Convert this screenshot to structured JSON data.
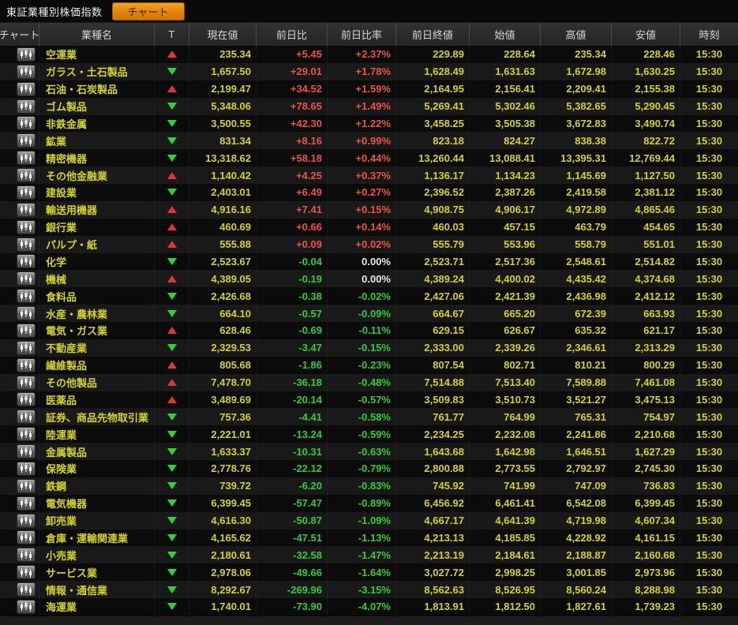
{
  "window": {
    "title": "東証業種別株価指数"
  },
  "toolbar": {
    "chart_button_label": "チャート"
  },
  "colors": {
    "accent_orange": "#e8890f",
    "value_yellow": "#d2d22b",
    "positive_red": "#e8544a",
    "negative_green": "#31cd31",
    "neutral_white": "#e9e9e9"
  },
  "table": {
    "columns": [
      "チャート",
      "業種名",
      "T",
      "現在値",
      "前日比",
      "前日比率",
      "前日終値",
      "始値",
      "高値",
      "安値",
      "時刻"
    ],
    "rows": [
      {
        "sector": "空運業",
        "tick": "up",
        "price": "235.34",
        "change": "+5.45",
        "change_pct": "+2.37%",
        "prev_close": "229.89",
        "open": "228.64",
        "high": "235.34",
        "low": "228.46",
        "time": "15:30"
      },
      {
        "sector": "ガラス・土石製品",
        "tick": "down",
        "price": "1,657.50",
        "change": "+29.01",
        "change_pct": "+1.78%",
        "prev_close": "1,628.49",
        "open": "1,631.63",
        "high": "1,672.98",
        "low": "1,630.25",
        "time": "15:30"
      },
      {
        "sector": "石油・石炭製品",
        "tick": "up",
        "price": "2,199.47",
        "change": "+34.52",
        "change_pct": "+1.59%",
        "prev_close": "2,164.95",
        "open": "2,156.41",
        "high": "2,209.41",
        "low": "2,155.38",
        "time": "15:30"
      },
      {
        "sector": "ゴム製品",
        "tick": "down",
        "price": "5,348.06",
        "change": "+78.65",
        "change_pct": "+1.49%",
        "prev_close": "5,269.41",
        "open": "5,302.46",
        "high": "5,382.65",
        "low": "5,290.45",
        "time": "15:30"
      },
      {
        "sector": "非鉄金属",
        "tick": "down",
        "price": "3,500.55",
        "change": "+42.30",
        "change_pct": "+1.22%",
        "prev_close": "3,458.25",
        "open": "3,505.38",
        "high": "3,672.83",
        "low": "3,490.74",
        "time": "15:30"
      },
      {
        "sector": "鉱業",
        "tick": "down",
        "price": "831.34",
        "change": "+8.16",
        "change_pct": "+0.99%",
        "prev_close": "823.18",
        "open": "824.27",
        "high": "838.38",
        "low": "822.72",
        "time": "15:30"
      },
      {
        "sector": "精密機器",
        "tick": "down",
        "price": "13,318.62",
        "change": "+58.18",
        "change_pct": "+0.44%",
        "prev_close": "13,260.44",
        "open": "13,088.41",
        "high": "13,395.31",
        "low": "12,769.44",
        "time": "15:30"
      },
      {
        "sector": "その他金融業",
        "tick": "up",
        "price": "1,140.42",
        "change": "+4.25",
        "change_pct": "+0.37%",
        "prev_close": "1,136.17",
        "open": "1,134.23",
        "high": "1,145.69",
        "low": "1,127.50",
        "time": "15:30"
      },
      {
        "sector": "建設業",
        "tick": "down",
        "price": "2,403.01",
        "change": "+6.49",
        "change_pct": "+0.27%",
        "prev_close": "2,396.52",
        "open": "2,387.26",
        "high": "2,419.58",
        "low": "2,381.12",
        "time": "15:30"
      },
      {
        "sector": "輸送用機器",
        "tick": "up",
        "price": "4,916.16",
        "change": "+7.41",
        "change_pct": "+0.15%",
        "prev_close": "4,908.75",
        "open": "4,906.17",
        "high": "4,972.89",
        "low": "4,865.46",
        "time": "15:30"
      },
      {
        "sector": "銀行業",
        "tick": "up",
        "price": "460.69",
        "change": "+0.66",
        "change_pct": "+0.14%",
        "prev_close": "460.03",
        "open": "457.15",
        "high": "463.79",
        "low": "454.65",
        "time": "15:30"
      },
      {
        "sector": "パルプ・紙",
        "tick": "up",
        "price": "555.88",
        "change": "+0.09",
        "change_pct": "+0.02%",
        "prev_close": "555.79",
        "open": "553.96",
        "high": "558.79",
        "low": "551.01",
        "time": "15:30"
      },
      {
        "sector": "化学",
        "tick": "down",
        "price": "2,523.67",
        "change": "-0.04",
        "change_pct": "0.00%",
        "prev_close": "2,523.71",
        "open": "2,517.36",
        "high": "2,548.61",
        "low": "2,514.82",
        "time": "15:30"
      },
      {
        "sector": "機械",
        "tick": "up",
        "price": "4,389.05",
        "change": "-0.19",
        "change_pct": "0.00%",
        "prev_close": "4,389.24",
        "open": "4,400.02",
        "high": "4,435.42",
        "low": "4,374.68",
        "time": "15:30"
      },
      {
        "sector": "食料品",
        "tick": "down",
        "price": "2,426.68",
        "change": "-0.38",
        "change_pct": "-0.02%",
        "prev_close": "2,427.06",
        "open": "2,421.39",
        "high": "2,436.98",
        "low": "2,412.12",
        "time": "15:30"
      },
      {
        "sector": "水産・農林業",
        "tick": "down",
        "price": "664.10",
        "change": "-0.57",
        "change_pct": "-0.09%",
        "prev_close": "664.67",
        "open": "665.20",
        "high": "672.39",
        "low": "663.93",
        "time": "15:30"
      },
      {
        "sector": "電気・ガス業",
        "tick": "up",
        "price": "628.46",
        "change": "-0.69",
        "change_pct": "-0.11%",
        "prev_close": "629.15",
        "open": "626.67",
        "high": "635.32",
        "low": "621.17",
        "time": "15:30"
      },
      {
        "sector": "不動産業",
        "tick": "down",
        "price": "2,329.53",
        "change": "-3.47",
        "change_pct": "-0.15%",
        "prev_close": "2,333.00",
        "open": "2,339.26",
        "high": "2,346.61",
        "low": "2,313.29",
        "time": "15:30"
      },
      {
        "sector": "繊維製品",
        "tick": "up",
        "price": "805.68",
        "change": "-1.86",
        "change_pct": "-0.23%",
        "prev_close": "807.54",
        "open": "802.71",
        "high": "810.21",
        "low": "800.29",
        "time": "15:30"
      },
      {
        "sector": "その他製品",
        "tick": "up",
        "price": "7,478.70",
        "change": "-36.18",
        "change_pct": "-0.48%",
        "prev_close": "7,514.88",
        "open": "7,513.40",
        "high": "7,589.88",
        "low": "7,461.08",
        "time": "15:30"
      },
      {
        "sector": "医薬品",
        "tick": "up",
        "price": "3,489.69",
        "change": "-20.14",
        "change_pct": "-0.57%",
        "prev_close": "3,509.83",
        "open": "3,510.73",
        "high": "3,521.27",
        "low": "3,475.13",
        "time": "15:30"
      },
      {
        "sector": "証券、商品先物取引業",
        "tick": "down",
        "price": "757.36",
        "change": "-4.41",
        "change_pct": "-0.58%",
        "prev_close": "761.77",
        "open": "764.99",
        "high": "765.31",
        "low": "754.97",
        "time": "15:30"
      },
      {
        "sector": "陸運業",
        "tick": "down",
        "price": "2,221.01",
        "change": "-13.24",
        "change_pct": "-0.59%",
        "prev_close": "2,234.25",
        "open": "2,232.08",
        "high": "2,241.86",
        "low": "2,210.68",
        "time": "15:30"
      },
      {
        "sector": "金属製品",
        "tick": "down",
        "price": "1,633.37",
        "change": "-10.31",
        "change_pct": "-0.63%",
        "prev_close": "1,643.68",
        "open": "1,642.98",
        "high": "1,646.51",
        "low": "1,627.29",
        "time": "15:30"
      },
      {
        "sector": "保険業",
        "tick": "down",
        "price": "2,778.76",
        "change": "-22.12",
        "change_pct": "-0.79%",
        "prev_close": "2,800.88",
        "open": "2,773.55",
        "high": "2,792.97",
        "low": "2,745.30",
        "time": "15:30"
      },
      {
        "sector": "鉄鋼",
        "tick": "down",
        "price": "739.72",
        "change": "-6.20",
        "change_pct": "-0.83%",
        "prev_close": "745.92",
        "open": "741.99",
        "high": "747.09",
        "low": "736.83",
        "time": "15:30"
      },
      {
        "sector": "電気機器",
        "tick": "down",
        "price": "6,399.45",
        "change": "-57.47",
        "change_pct": "-0.89%",
        "prev_close": "6,456.92",
        "open": "6,461.41",
        "high": "6,542.08",
        "low": "6,399.45",
        "time": "15:30"
      },
      {
        "sector": "卸売業",
        "tick": "down",
        "price": "4,616.30",
        "change": "-50.87",
        "change_pct": "-1.09%",
        "prev_close": "4,667.17",
        "open": "4,641.39",
        "high": "4,719.98",
        "low": "4,607.34",
        "time": "15:30"
      },
      {
        "sector": "倉庫・運輸関連業",
        "tick": "down",
        "price": "4,165.62",
        "change": "-47.51",
        "change_pct": "-1.13%",
        "prev_close": "4,213.13",
        "open": "4,185.85",
        "high": "4,228.92",
        "low": "4,161.15",
        "time": "15:30"
      },
      {
        "sector": "小売業",
        "tick": "down",
        "price": "2,180.61",
        "change": "-32.58",
        "change_pct": "-1.47%",
        "prev_close": "2,213.19",
        "open": "2,184.61",
        "high": "2,188.87",
        "low": "2,160.68",
        "time": "15:30"
      },
      {
        "sector": "サービス業",
        "tick": "down",
        "price": "2,978.06",
        "change": "-49.66",
        "change_pct": "-1.64%",
        "prev_close": "3,027.72",
        "open": "2,998.25",
        "high": "3,001.85",
        "low": "2,973.96",
        "time": "15:30"
      },
      {
        "sector": "情報・通信業",
        "tick": "down",
        "price": "8,292.67",
        "change": "-269.96",
        "change_pct": "-3.15%",
        "prev_close": "8,562.63",
        "open": "8,526.95",
        "high": "8,560.24",
        "low": "8,288.98",
        "time": "15:30"
      },
      {
        "sector": "海運業",
        "tick": "down",
        "price": "1,740.01",
        "change": "-73.90",
        "change_pct": "-4.07%",
        "prev_close": "1,813.91",
        "open": "1,812.50",
        "high": "1,827.61",
        "low": "1,739.23",
        "time": "15:30"
      }
    ]
  }
}
